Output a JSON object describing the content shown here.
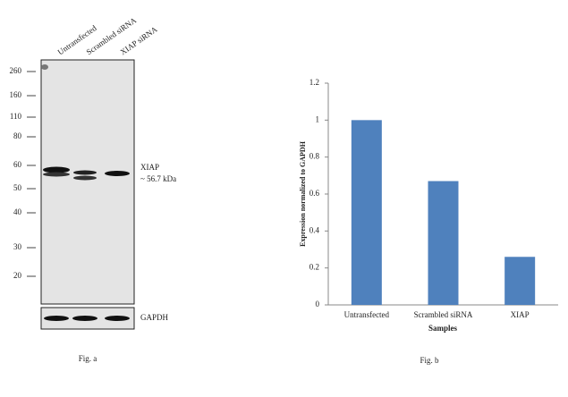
{
  "western_blot": {
    "lanes": [
      "Untransfected",
      "Scrambled siRNA",
      "XIAP siRNA"
    ],
    "markers": [
      260,
      160,
      110,
      80,
      60,
      50,
      40,
      30,
      20
    ],
    "band_label": "XIAP",
    "band_size": "~ 56.7 kDa",
    "loading_control": "GAPDH",
    "caption": "Fig. a"
  },
  "chart_data": {
    "type": "bar",
    "categories": [
      "Untransfected",
      "Scrambled siRNA",
      "XIAP"
    ],
    "values": [
      1,
      0.67,
      0.26
    ],
    "color": "#4f81bd",
    "ylim": [
      0,
      1.2
    ],
    "yticks": [
      0,
      0.2,
      0.4,
      0.6,
      0.8,
      1,
      1.2
    ],
    "ylabel": "Expression normalized to GAPDH",
    "xlabel": "Samples",
    "caption": "Fig. b",
    "grid": false
  }
}
